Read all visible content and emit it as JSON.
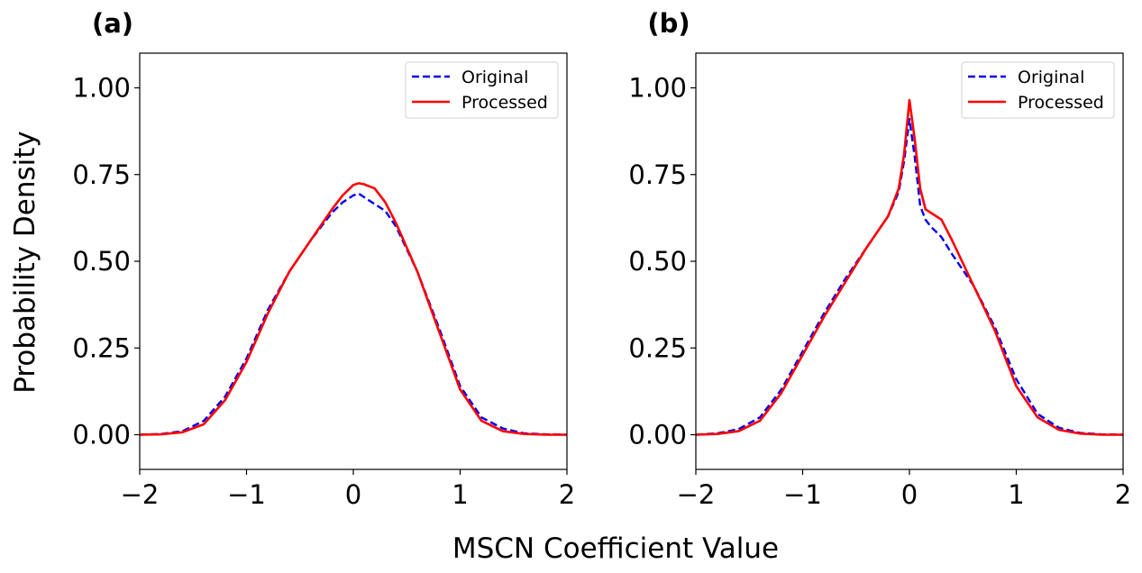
{
  "figure": {
    "xlabel": "MSCN Coefficient Value",
    "ylabel": "Probability Density"
  },
  "chart_data": [
    {
      "type": "line",
      "panel_label": "(a)",
      "xlim": [
        -2,
        2
      ],
      "ylim": [
        -0.1,
        1.1
      ],
      "xticks": [
        -2,
        -1,
        0,
        1,
        2
      ],
      "xtick_labels": [
        "−2",
        "−1",
        "0",
        "1",
        "2"
      ],
      "yticks": [
        0,
        0.25,
        0.5,
        0.75,
        1.0
      ],
      "ytick_labels": [
        "0.00",
        "0.25",
        "0.50",
        "0.75",
        "1.00"
      ],
      "grid": false,
      "legend_position": "top-right",
      "series": [
        {
          "name": "Original",
          "color": "#0000ee",
          "style": "dashed",
          "x": [
            -2.0,
            -1.8,
            -1.6,
            -1.4,
            -1.2,
            -1.0,
            -0.8,
            -0.6,
            -0.4,
            -0.2,
            -0.1,
            0.0,
            0.05,
            0.1,
            0.2,
            0.3,
            0.4,
            0.6,
            0.8,
            1.0,
            1.2,
            1.4,
            1.6,
            1.8,
            2.0
          ],
          "y": [
            0.0,
            0.002,
            0.01,
            0.04,
            0.11,
            0.22,
            0.36,
            0.47,
            0.56,
            0.64,
            0.67,
            0.69,
            0.695,
            0.685,
            0.665,
            0.645,
            0.6,
            0.47,
            0.31,
            0.14,
            0.05,
            0.018,
            0.004,
            0.001,
            0.0
          ]
        },
        {
          "name": "Processed",
          "color": "#ff0000",
          "style": "solid",
          "x": [
            -2.0,
            -1.8,
            -1.6,
            -1.4,
            -1.2,
            -1.0,
            -0.8,
            -0.6,
            -0.4,
            -0.2,
            -0.1,
            0.0,
            0.05,
            0.1,
            0.2,
            0.3,
            0.4,
            0.6,
            0.8,
            1.0,
            1.2,
            1.4,
            1.6,
            1.8,
            2.0
          ],
          "y": [
            0.0,
            0.001,
            0.007,
            0.03,
            0.1,
            0.21,
            0.35,
            0.47,
            0.56,
            0.65,
            0.69,
            0.72,
            0.725,
            0.722,
            0.71,
            0.67,
            0.61,
            0.47,
            0.3,
            0.13,
            0.04,
            0.01,
            0.002,
            0.0,
            0.0
          ]
        }
      ]
    },
    {
      "type": "line",
      "panel_label": "(b)",
      "xlim": [
        -2,
        2
      ],
      "ylim": [
        -0.1,
        1.1
      ],
      "xticks": [
        -2,
        -1,
        0,
        1,
        2
      ],
      "xtick_labels": [
        "−2",
        "−1",
        "0",
        "1",
        "2"
      ],
      "yticks": [
        0,
        0.25,
        0.5,
        0.75,
        1.0
      ],
      "ytick_labels": [
        "0.00",
        "0.25",
        "0.50",
        "0.75",
        "1.00"
      ],
      "grid": false,
      "legend_position": "top-right",
      "series": [
        {
          "name": "Original",
          "color": "#0000ee",
          "style": "dashed",
          "x": [
            -2.0,
            -1.8,
            -1.6,
            -1.4,
            -1.2,
            -1.0,
            -0.8,
            -0.6,
            -0.4,
            -0.2,
            -0.1,
            -0.05,
            0.0,
            0.05,
            0.1,
            0.15,
            0.2,
            0.3,
            0.4,
            0.6,
            0.8,
            1.0,
            1.2,
            1.4,
            1.6,
            1.8,
            2.0
          ],
          "y": [
            0.0,
            0.004,
            0.016,
            0.05,
            0.13,
            0.24,
            0.35,
            0.45,
            0.54,
            0.63,
            0.7,
            0.79,
            0.91,
            0.8,
            0.66,
            0.62,
            0.6,
            0.57,
            0.52,
            0.43,
            0.31,
            0.16,
            0.06,
            0.02,
            0.005,
            0.001,
            0.0
          ]
        },
        {
          "name": "Processed",
          "color": "#ff0000",
          "style": "solid",
          "x": [
            -2.0,
            -1.8,
            -1.6,
            -1.4,
            -1.2,
            -1.0,
            -0.8,
            -0.6,
            -0.4,
            -0.2,
            -0.1,
            -0.05,
            0.0,
            0.05,
            0.1,
            0.15,
            0.2,
            0.3,
            0.4,
            0.6,
            0.8,
            1.0,
            1.2,
            1.4,
            1.6,
            1.8,
            2.0
          ],
          "y": [
            0.0,
            0.002,
            0.01,
            0.04,
            0.12,
            0.23,
            0.34,
            0.44,
            0.54,
            0.63,
            0.71,
            0.81,
            0.965,
            0.85,
            0.71,
            0.65,
            0.64,
            0.62,
            0.56,
            0.43,
            0.3,
            0.14,
            0.05,
            0.014,
            0.003,
            0.0,
            0.0
          ]
        }
      ]
    }
  ]
}
